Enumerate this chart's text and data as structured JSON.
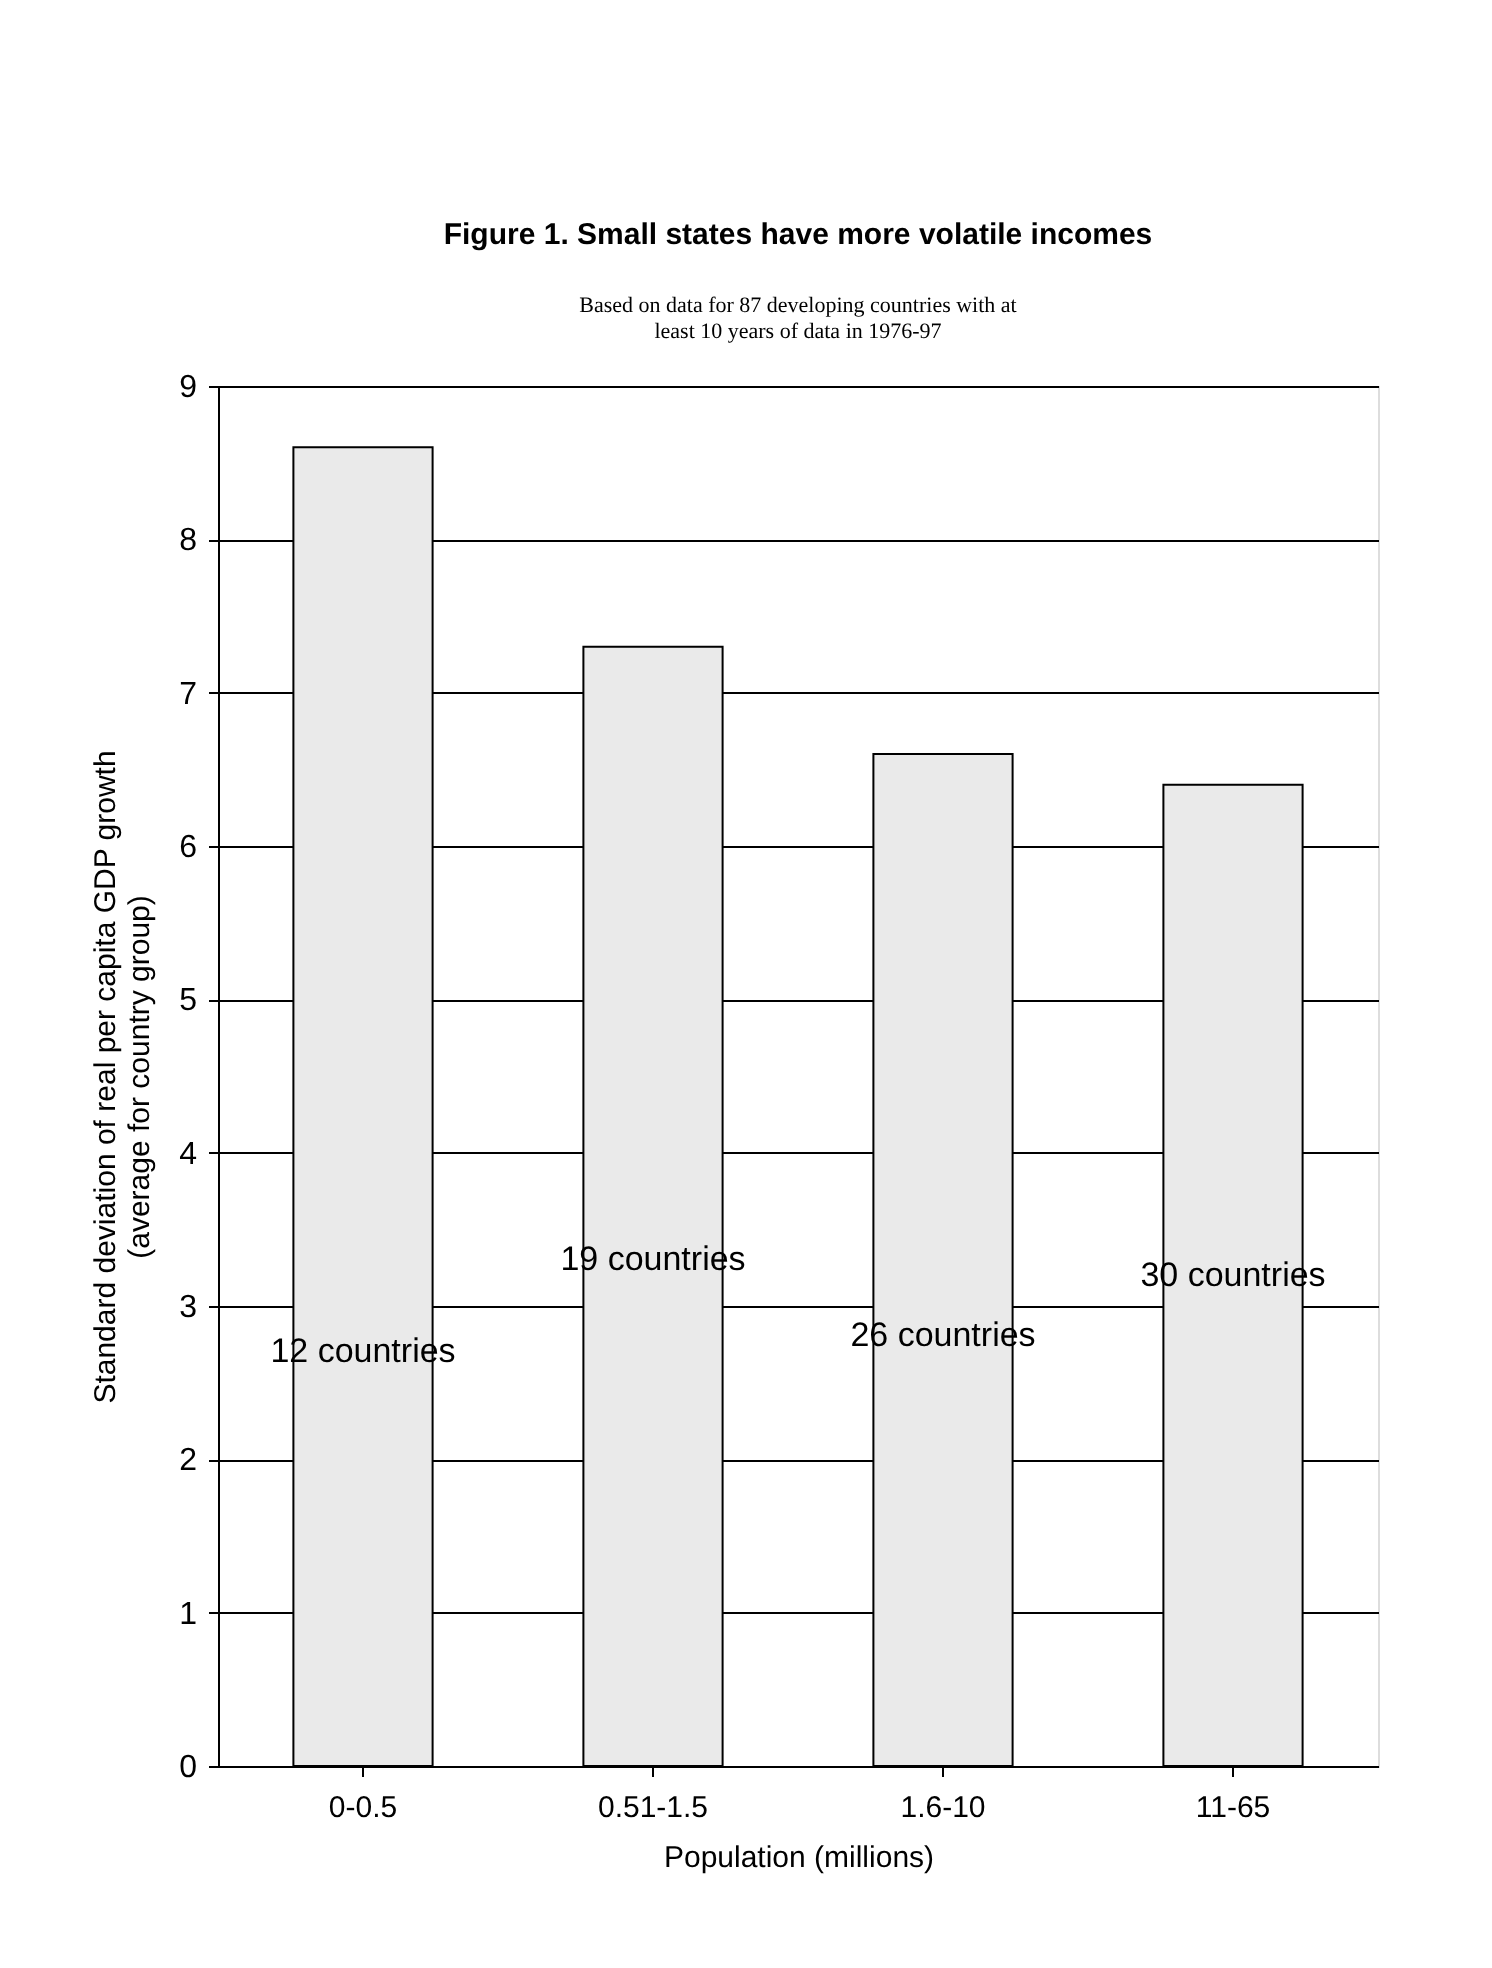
{
  "chart_data": {
    "type": "bar",
    "title": "Figure 1.  Small states have more volatile incomes",
    "subtitle": "Based on data for 87 developing countries with at\nleast 10 years of data in 1976-97",
    "xlabel": "Population (millions)",
    "ylabel": "Standard deviation of real per capita GDP growth\n(average for country group)",
    "categories": [
      "0-0.5",
      "0.51-1.5",
      "1.6-10",
      "11-65"
    ],
    "values": [
      8.6,
      7.3,
      6.6,
      6.4
    ],
    "color": "#eaeaea",
    "ylim": [
      0,
      9
    ],
    "yticks": [
      0,
      1,
      2,
      3,
      4,
      5,
      6,
      7,
      8,
      9
    ],
    "grid": "y",
    "annotations": [
      "12 countries",
      "19 countries",
      "26 countries",
      "30 countries"
    ]
  }
}
